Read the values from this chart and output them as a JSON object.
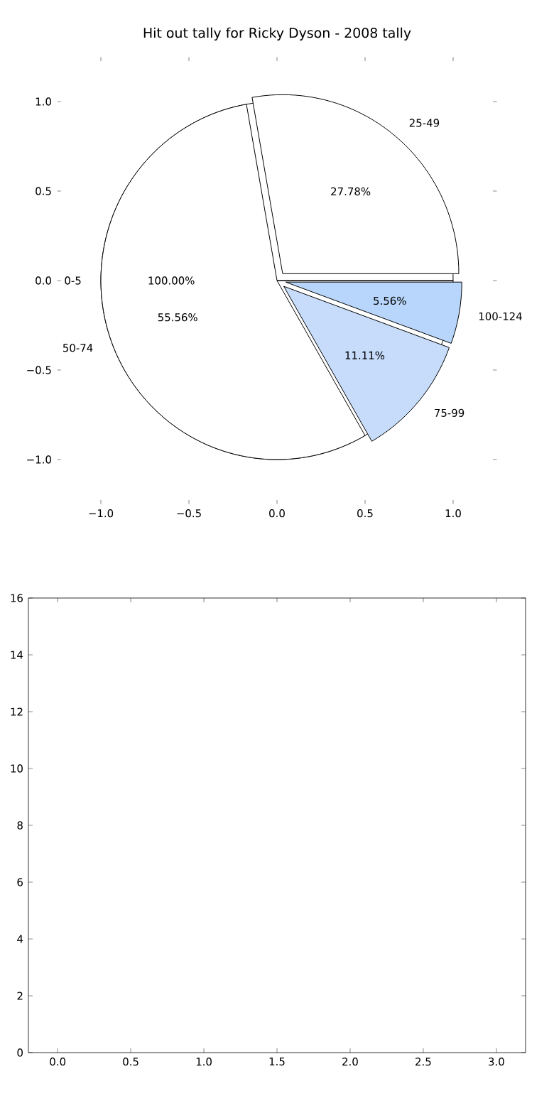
{
  "chart_data": [
    {
      "type": "pie",
      "title": "Hit out tally for Ricky Dyson - 2008 tally",
      "categories": [
        "25-49",
        "50-74",
        "75-99",
        "100-124"
      ],
      "values": [
        27.78,
        55.56,
        11.11,
        5.56
      ],
      "value_labels": [
        "27.78%",
        "55.56%",
        "11.11%",
        "5.56%"
      ],
      "colors": [
        "#ffffff",
        "#ffffff",
        "#c6dcfa",
        "#b8d6fb"
      ]
    },
    {
      "type": "pie",
      "categories": [
        "0-5"
      ],
      "values": [
        100
      ],
      "value_labels": [
        "100.00%"
      ],
      "colors": [
        "#ffffff"
      ]
    },
    {
      "type": "scatter",
      "xlim": [
        -1.25,
        1.25
      ],
      "ylim": [
        -1.25,
        1.25
      ],
      "xticks": [
        {
          "value": -1,
          "label": "−1.0"
        },
        {
          "value": -0.5,
          "label": "−0.5"
        },
        {
          "value": 0,
          "label": "0.0"
        },
        {
          "value": 0.5,
          "label": "0.5"
        },
        {
          "value": 1,
          "label": "1.0"
        }
      ],
      "yticks": [
        {
          "value": -1,
          "label": "−1.0"
        },
        {
          "value": -0.5,
          "label": "−0.5"
        },
        {
          "value": 0,
          "label": "0.0"
        },
        {
          "value": 0.5,
          "label": "0.5"
        },
        {
          "value": 1,
          "label": "1.0"
        }
      ]
    },
    {
      "type": "scatter",
      "xlim": [
        -0.2,
        3.2
      ],
      "ylim": [
        0,
        16
      ],
      "xticks": [
        {
          "value": 0,
          "label": "0.0"
        },
        {
          "value": 0.5,
          "label": "0.5"
        },
        {
          "value": 1,
          "label": "1.0"
        },
        {
          "value": 1.5,
          "label": "1.5"
        },
        {
          "value": 2,
          "label": "2.0"
        },
        {
          "value": 2.5,
          "label": "2.5"
        },
        {
          "value": 3,
          "label": "3.0"
        }
      ],
      "yticks": [
        0,
        2,
        4,
        6,
        8,
        10,
        12,
        14,
        16
      ]
    }
  ]
}
